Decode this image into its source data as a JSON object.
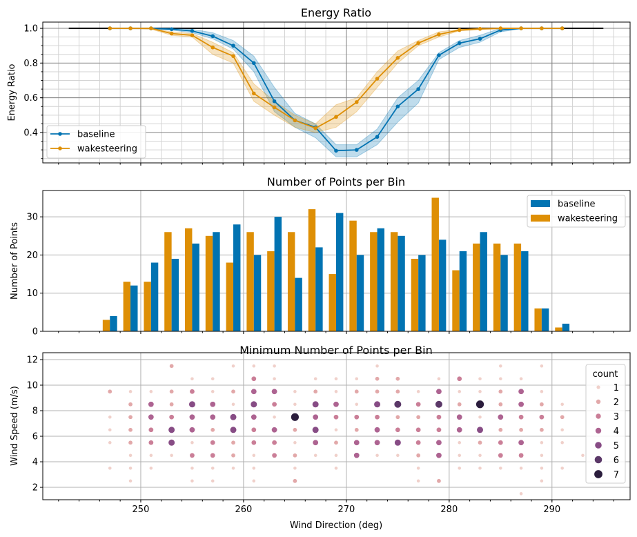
{
  "chart_data": [
    {
      "type": "line",
      "title": "Energy Ratio",
      "xlabel": "",
      "ylabel": "Energy Ratio",
      "xlim": [
        240.47,
        297.6
      ],
      "ylim": [
        0.225,
        1.036
      ],
      "yticks": [
        0.4,
        0.6,
        0.8,
        1.0
      ],
      "ytick_labels": [
        "0.4",
        "0.6",
        "0.8",
        "1.0"
      ],
      "grid": true,
      "legend_position": "lower-left",
      "reference_line": {
        "x": [
          243,
          295
        ],
        "y": 1.0,
        "color": "#000000"
      },
      "x": [
        247,
        249,
        251,
        253,
        255,
        257,
        259,
        261,
        263,
        265,
        267,
        269,
        271,
        273,
        275,
        277,
        279,
        281,
        283,
        285,
        287,
        289,
        291
      ],
      "series": [
        {
          "name": "baseline",
          "color": "#0173b2",
          "values": [
            1.0,
            1.0,
            1.0,
            0.995,
            0.985,
            0.955,
            0.9,
            0.8,
            0.58,
            0.47,
            0.43,
            0.295,
            0.3,
            0.375,
            0.55,
            0.65,
            0.845,
            0.915,
            0.94,
            0.99,
            1.0,
            1.0,
            1.0
          ],
          "lower": [
            0.997,
            0.997,
            0.997,
            0.99,
            0.975,
            0.94,
            0.88,
            0.75,
            0.52,
            0.43,
            0.37,
            0.26,
            0.26,
            0.33,
            0.46,
            0.57,
            0.82,
            0.89,
            0.92,
            0.98,
            0.997,
            0.997,
            0.997
          ],
          "upper": [
            1.0,
            1.0,
            1.0,
            1.0,
            0.995,
            0.975,
            0.93,
            0.84,
            0.66,
            0.51,
            0.45,
            0.33,
            0.33,
            0.42,
            0.6,
            0.7,
            0.86,
            0.93,
            0.96,
            1.0,
            1.0,
            1.0,
            1.0
          ]
        },
        {
          "name": "wakesteering",
          "color": "#de8f05",
          "values": [
            1.0,
            1.0,
            1.0,
            0.97,
            0.96,
            0.89,
            0.84,
            0.625,
            0.545,
            0.47,
            0.425,
            0.49,
            0.575,
            0.71,
            0.83,
            0.915,
            0.965,
            0.99,
            0.997,
            1.0,
            1.0,
            1.0,
            1.0
          ],
          "lower": [
            0.997,
            0.997,
            0.995,
            0.96,
            0.95,
            0.85,
            0.8,
            0.58,
            0.5,
            0.43,
            0.4,
            0.43,
            0.52,
            0.66,
            0.8,
            0.9,
            0.95,
            0.985,
            0.993,
            0.997,
            0.997,
            0.997,
            0.997
          ],
          "upper": [
            1.0,
            1.0,
            1.0,
            0.98,
            0.97,
            0.92,
            0.86,
            0.68,
            0.58,
            0.5,
            0.45,
            0.56,
            0.6,
            0.75,
            0.87,
            0.93,
            0.98,
            0.995,
            1.0,
            1.0,
            1.0,
            1.0,
            1.0
          ]
        }
      ]
    },
    {
      "type": "bar",
      "title": "Number of Points per Bin",
      "xlabel": "",
      "ylabel": "Number of Points",
      "xlim": [
        240.47,
        297.6
      ],
      "ylim": [
        0,
        36.9
      ],
      "yticks": [
        0,
        10,
        20,
        30
      ],
      "ytick_labels": [
        "0",
        "10",
        "20",
        "30"
      ],
      "grid": true,
      "legend_position": "top-right",
      "categories": [
        247,
        249,
        251,
        253,
        255,
        257,
        259,
        261,
        263,
        265,
        267,
        269,
        271,
        273,
        275,
        277,
        279,
        281,
        283,
        285,
        287,
        289,
        291
      ],
      "series": [
        {
          "name": "baseline",
          "color": "#0173b2",
          "values": [
            4,
            12,
            18,
            19,
            23,
            26,
            28,
            20,
            30,
            14,
            22,
            31,
            20,
            27,
            25,
            20,
            24,
            21,
            26,
            20,
            21,
            6,
            2
          ]
        },
        {
          "name": "wakesteering",
          "color": "#de8f05",
          "values": [
            3,
            13,
            13,
            26,
            27,
            25,
            18,
            26,
            21,
            26,
            32,
            15,
            29,
            26,
            26,
            19,
            35,
            16,
            23,
            23,
            23,
            6,
            1
          ]
        }
      ]
    },
    {
      "type": "scatter",
      "title": "Minimum Number of Points per Bin",
      "xlabel": "Wind Direction (deg)",
      "ylabel": "Wind Speed (m/s)",
      "xlim": [
        240.47,
        297.6
      ],
      "ylim": [
        1.03,
        12.54
      ],
      "xticks": [
        250,
        260,
        270,
        280,
        290
      ],
      "xtick_labels": [
        "250",
        "260",
        "270",
        "280",
        "290"
      ],
      "yticks": [
        2,
        4,
        6,
        8,
        10,
        12
      ],
      "ytick_labels": [
        "2",
        "4",
        "6",
        "8",
        "10",
        "12"
      ],
      "grid": true,
      "legend_title": "count",
      "legend_position": "right",
      "legend_entries": [
        "1",
        "2",
        "3",
        "4",
        "5",
        "6",
        "7"
      ],
      "count_colors": [
        "#f0d0ca",
        "#e2a8a9",
        "#ca7e97",
        "#ad6391",
        "#874c85",
        "#5b3868",
        "#2b1d3d"
      ],
      "points": [
        [
          247,
          9.5,
          2
        ],
        [
          247,
          7.5,
          1
        ],
        [
          247,
          6.5,
          1
        ],
        [
          247,
          5.5,
          1
        ],
        [
          247,
          3.5,
          1
        ],
        [
          249,
          9.5,
          1
        ],
        [
          249,
          8.5,
          2
        ],
        [
          249,
          7.5,
          2
        ],
        [
          249,
          6.5,
          2
        ],
        [
          249,
          5.5,
          2
        ],
        [
          249,
          4.5,
          1
        ],
        [
          249,
          3.5,
          1
        ],
        [
          249,
          2.5,
          1
        ],
        [
          251,
          9.5,
          1
        ],
        [
          251,
          8.5,
          4
        ],
        [
          251,
          7.5,
          4
        ],
        [
          251,
          6.5,
          3
        ],
        [
          251,
          5.5,
          3
        ],
        [
          251,
          4.5,
          1
        ],
        [
          251,
          3.5,
          1
        ],
        [
          253,
          11.5,
          2
        ],
        [
          253,
          9.5,
          2
        ],
        [
          253,
          8.5,
          2
        ],
        [
          253,
          7.5,
          3
        ],
        [
          253,
          6.5,
          5
        ],
        [
          253,
          5.5,
          5
        ],
        [
          253,
          4.5,
          1
        ],
        [
          255,
          10.5,
          1
        ],
        [
          255,
          9.5,
          3
        ],
        [
          255,
          8.5,
          5
        ],
        [
          255,
          7.5,
          4
        ],
        [
          255,
          6.5,
          4
        ],
        [
          255,
          5.5,
          1
        ],
        [
          255,
          4.5,
          3
        ],
        [
          255,
          3.5,
          1
        ],
        [
          255,
          2.5,
          1
        ],
        [
          257,
          10.5,
          1
        ],
        [
          257,
          9.5,
          1
        ],
        [
          257,
          8.5,
          4
        ],
        [
          257,
          7.5,
          4
        ],
        [
          257,
          6.5,
          2
        ],
        [
          257,
          5.5,
          3
        ],
        [
          257,
          4.5,
          3
        ],
        [
          257,
          3.5,
          1
        ],
        [
          257,
          2.5,
          1
        ],
        [
          259,
          11.5,
          1
        ],
        [
          259,
          9.5,
          2
        ],
        [
          259,
          8.5,
          1
        ],
        [
          259,
          7.5,
          5
        ],
        [
          259,
          6.5,
          5
        ],
        [
          259,
          5.5,
          2
        ],
        [
          259,
          4.5,
          2
        ],
        [
          259,
          3.5,
          1
        ],
        [
          261,
          11.5,
          1
        ],
        [
          261,
          10.5,
          3
        ],
        [
          261,
          9.5,
          4
        ],
        [
          261,
          8.5,
          5
        ],
        [
          261,
          7.5,
          4
        ],
        [
          261,
          6.5,
          3
        ],
        [
          261,
          5.5,
          3
        ],
        [
          261,
          4.5,
          1
        ],
        [
          261,
          3.5,
          1
        ],
        [
          261,
          2.5,
          1
        ],
        [
          263,
          11.5,
          1
        ],
        [
          263,
          10.5,
          1
        ],
        [
          263,
          9.5,
          4
        ],
        [
          263,
          8.5,
          3
        ],
        [
          263,
          7.5,
          1
        ],
        [
          263,
          6.5,
          4
        ],
        [
          263,
          5.5,
          3
        ],
        [
          263,
          4.5,
          3
        ],
        [
          265,
          9.5,
          1
        ],
        [
          265,
          8.5,
          1
        ],
        [
          265,
          7.5,
          7
        ],
        [
          265,
          6.5,
          2
        ],
        [
          265,
          5.5,
          1
        ],
        [
          265,
          4.5,
          2
        ],
        [
          265,
          3.5,
          1
        ],
        [
          265,
          2.5,
          2
        ],
        [
          267,
          10.5,
          1
        ],
        [
          267,
          9.5,
          2
        ],
        [
          267,
          8.5,
          5
        ],
        [
          267,
          7.5,
          4
        ],
        [
          267,
          6.5,
          5
        ],
        [
          267,
          5.5,
          4
        ],
        [
          267,
          4.5,
          1
        ],
        [
          269,
          10.5,
          1
        ],
        [
          269,
          9.5,
          1
        ],
        [
          269,
          8.5,
          4
        ],
        [
          269,
          7.5,
          3
        ],
        [
          269,
          6.5,
          1
        ],
        [
          269,
          5.5,
          2
        ],
        [
          269,
          4.5,
          1
        ],
        [
          269,
          3.5,
          1
        ],
        [
          271,
          10.5,
          1
        ],
        [
          271,
          9.5,
          2
        ],
        [
          271,
          8.5,
          1
        ],
        [
          271,
          7.5,
          3
        ],
        [
          271,
          6.5,
          2
        ],
        [
          271,
          5.5,
          4
        ],
        [
          271,
          4.5,
          4
        ],
        [
          273,
          11.5,
          1
        ],
        [
          273,
          10.5,
          2
        ],
        [
          273,
          9.5,
          2
        ],
        [
          273,
          8.5,
          5
        ],
        [
          273,
          7.5,
          3
        ],
        [
          273,
          6.5,
          4
        ],
        [
          273,
          5.5,
          4
        ],
        [
          273,
          4.5,
          1
        ],
        [
          275,
          10.5,
          2
        ],
        [
          275,
          9.5,
          2
        ],
        [
          275,
          8.5,
          6
        ],
        [
          275,
          7.5,
          2
        ],
        [
          275,
          6.5,
          3
        ],
        [
          275,
          5.5,
          5
        ],
        [
          275,
          4.5,
          1
        ],
        [
          277,
          9.5,
          1
        ],
        [
          277,
          8.5,
          3
        ],
        [
          277,
          7.5,
          2
        ],
        [
          277,
          6.5,
          3
        ],
        [
          277,
          5.5,
          3
        ],
        [
          277,
          4.5,
          2
        ],
        [
          277,
          3.5,
          1
        ],
        [
          277,
          2.5,
          1
        ],
        [
          279,
          10.5,
          1
        ],
        [
          279,
          9.5,
          4
        ],
        [
          279,
          8.5,
          6
        ],
        [
          279,
          7.5,
          3
        ],
        [
          279,
          6.5,
          3
        ],
        [
          279,
          5.5,
          4
        ],
        [
          279,
          4.5,
          4
        ],
        [
          279,
          2.5,
          2
        ],
        [
          281,
          10.5,
          3
        ],
        [
          281,
          9.5,
          1
        ],
        [
          281,
          8.5,
          2
        ],
        [
          281,
          7.5,
          4
        ],
        [
          281,
          6.5,
          4
        ],
        [
          281,
          5.5,
          1
        ],
        [
          281,
          4.5,
          1
        ],
        [
          281,
          3.5,
          1
        ],
        [
          283,
          10.5,
          1
        ],
        [
          283,
          9.5,
          1
        ],
        [
          283,
          8.5,
          7
        ],
        [
          283,
          7.5,
          1
        ],
        [
          283,
          6.5,
          5
        ],
        [
          283,
          5.5,
          2
        ],
        [
          283,
          4.5,
          1
        ],
        [
          283,
          3.5,
          1
        ],
        [
          285,
          11.5,
          1
        ],
        [
          285,
          10.5,
          1
        ],
        [
          285,
          9.5,
          2
        ],
        [
          285,
          8.5,
          2
        ],
        [
          285,
          7.5,
          4
        ],
        [
          285,
          6.5,
          2
        ],
        [
          285,
          5.5,
          3
        ],
        [
          285,
          4.5,
          3
        ],
        [
          285,
          3.5,
          1
        ],
        [
          287,
          10.5,
          1
        ],
        [
          287,
          9.5,
          4
        ],
        [
          287,
          8.5,
          4
        ],
        [
          287,
          7.5,
          3
        ],
        [
          287,
          6.5,
          2
        ],
        [
          287,
          5.5,
          4
        ],
        [
          287,
          4.5,
          3
        ],
        [
          287,
          3.5,
          1
        ],
        [
          287,
          1.5,
          1
        ],
        [
          289,
          11.5,
          1
        ],
        [
          289,
          9.5,
          1
        ],
        [
          289,
          8.5,
          2
        ],
        [
          289,
          7.5,
          3
        ],
        [
          289,
          6.5,
          2
        ],
        [
          289,
          5.5,
          1
        ],
        [
          289,
          4.5,
          1
        ],
        [
          289,
          3.5,
          1
        ],
        [
          289,
          2.5,
          1
        ],
        [
          291,
          8.5,
          1
        ],
        [
          291,
          7.5,
          2
        ],
        [
          291,
          6.5,
          1
        ],
        [
          291,
          5.5,
          1
        ],
        [
          291,
          3.5,
          1
        ],
        [
          293,
          4.5,
          1
        ]
      ]
    }
  ]
}
